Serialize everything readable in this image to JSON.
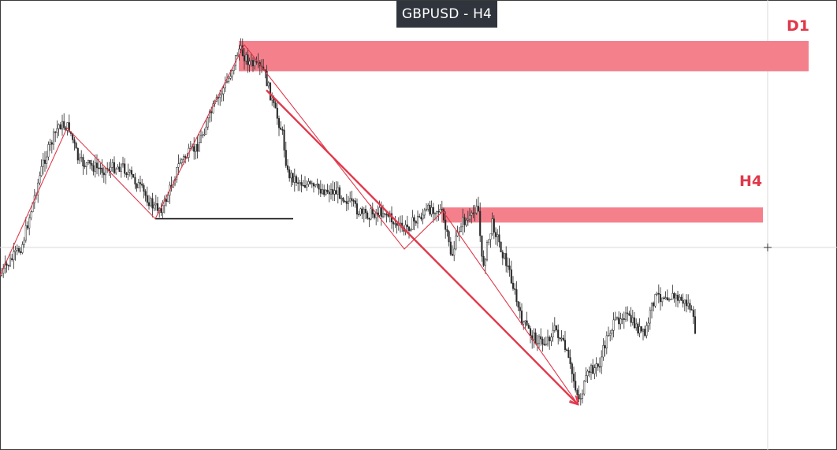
{
  "title": "GBPUSD - H4",
  "colors": {
    "zone_fill": "#f4808c",
    "label": "#e0394b",
    "trend_line": "#e0394b",
    "candle": "#2a2a2a",
    "support_line": "#111111",
    "crosshair": "#d8d8d8",
    "badge_bg": "#30353d"
  },
  "chart_data": {
    "type": "candlestick",
    "symbol": "GBPUSD",
    "timeframe": "H4",
    "grid": false,
    "price_path": [
      [
        0,
        0.62
      ],
      [
        28,
        0.54
      ],
      [
        55,
        0.32
      ],
      [
        75,
        0.22
      ],
      [
        88,
        0.23
      ],
      [
        100,
        0.32
      ],
      [
        130,
        0.34
      ],
      [
        155,
        0.33
      ],
      [
        175,
        0.38
      ],
      [
        195,
        0.44
      ],
      [
        207,
        0.44
      ],
      [
        228,
        0.32
      ],
      [
        250,
        0.28
      ],
      [
        270,
        0.18
      ],
      [
        290,
        0.1
      ],
      [
        303,
        0.02
      ],
      [
        318,
        0.06
      ],
      [
        335,
        0.08
      ],
      [
        348,
        0.18
      ],
      [
        358,
        0.24
      ],
      [
        365,
        0.35
      ],
      [
        378,
        0.37
      ],
      [
        400,
        0.39
      ],
      [
        430,
        0.4
      ],
      [
        460,
        0.46
      ],
      [
        488,
        0.45
      ],
      [
        500,
        0.48
      ],
      [
        512,
        0.5
      ],
      [
        530,
        0.47
      ],
      [
        548,
        0.44
      ],
      [
        560,
        0.45
      ],
      [
        573,
        0.57
      ],
      [
        585,
        0.48
      ],
      [
        598,
        0.47
      ],
      [
        606,
        0.42
      ],
      [
        612,
        0.6
      ],
      [
        625,
        0.48
      ],
      [
        636,
        0.55
      ],
      [
        648,
        0.62
      ],
      [
        660,
        0.73
      ],
      [
        675,
        0.78
      ],
      [
        690,
        0.8
      ],
      [
        705,
        0.76
      ],
      [
        718,
        0.82
      ],
      [
        735,
        0.95
      ],
      [
        748,
        0.87
      ],
      [
        760,
        0.86
      ],
      [
        772,
        0.77
      ],
      [
        790,
        0.72
      ],
      [
        805,
        0.75
      ],
      [
        818,
        0.78
      ],
      [
        830,
        0.68
      ],
      [
        845,
        0.67
      ],
      [
        860,
        0.68
      ],
      [
        875,
        0.7
      ],
      [
        884,
        0.78
      ]
    ],
    "zones": [
      {
        "label": "D1",
        "from_index": 303,
        "to_index": 1026,
        "price_top": 0.0,
        "price_bottom": 0.08
      },
      {
        "label": "H4",
        "from_index": 560,
        "to_index": 968,
        "price_top": 0.44,
        "price_bottom": 0.48
      }
    ],
    "trend_lines": [
      {
        "points": [
          [
            0,
            0.62
          ],
          [
            85,
            0.23
          ],
          [
            197,
            0.47
          ],
          [
            310,
            0.01
          ],
          [
            513,
            0.55
          ],
          [
            562,
            0.45
          ],
          [
            733,
            0.96
          ]
        ],
        "arrow": true
      },
      {
        "points": [
          [
            338,
            0.13
          ],
          [
            733,
            0.96
          ]
        ],
        "arrow": true,
        "bold": true
      }
    ],
    "support_level": {
      "from_index": 197,
      "to_index": 372,
      "price": 0.47
    }
  }
}
